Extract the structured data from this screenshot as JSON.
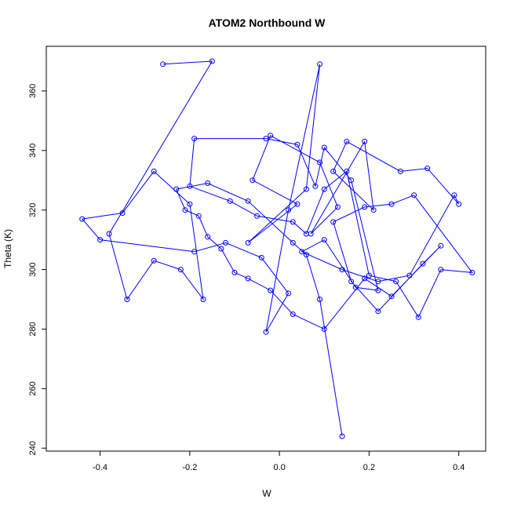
{
  "chart_data": {
    "type": "line",
    "title": "ATOM2 Northbound W",
    "xlabel": "W",
    "ylabel": "Theta (K)",
    "xlim": [
      -0.52,
      0.46
    ],
    "ylim": [
      239.0,
      375.0
    ],
    "xticks": [
      -0.4,
      -0.2,
      0.0,
      0.2,
      0.4
    ],
    "xtick_labels": [
      "-0.4",
      "-0.2",
      "0.0",
      "0.2",
      "0.4"
    ],
    "yticks": [
      240,
      260,
      280,
      300,
      320,
      340,
      360
    ],
    "ytick_labels": [
      "240",
      "260",
      "280",
      "300",
      "320",
      "340",
      "360"
    ],
    "grid": false,
    "legend": "none",
    "series": [
      {
        "color": "#0000ff",
        "marker": "open-circle",
        "x": [
          -0.26,
          -0.15,
          -0.38,
          -0.34,
          -0.28,
          -0.22,
          -0.17,
          -0.2,
          -0.28,
          -0.35,
          -0.44,
          -0.4,
          -0.19,
          -0.12,
          -0.04,
          0.02,
          -0.03,
          0.02,
          0.09,
          0.06,
          -0.07,
          0.04,
          -0.06,
          -0.02,
          0.09,
          0.13,
          0.07,
          0.19,
          0.21,
          0.12,
          0.15,
          0.27,
          0.33,
          0.4,
          0.39,
          0.29,
          0.22,
          0.14,
          0.05,
          0.1,
          0.17,
          0.22,
          0.16,
          0.1,
          0.08,
          0.04,
          -0.03,
          -0.19,
          -0.2,
          -0.11,
          -0.05,
          0.03,
          0.06,
          0.1,
          0.15,
          0.2,
          0.26,
          0.31,
          0.36,
          0.43,
          0.3,
          0.25,
          0.19,
          0.12,
          0.16,
          0.22,
          0.32,
          0.36,
          0.25,
          0.19,
          0.1,
          0.03,
          -0.02,
          -0.07,
          -0.1,
          -0.13,
          -0.16,
          -0.18,
          -0.21,
          -0.23,
          -0.16,
          -0.07,
          0.03,
          0.06,
          0.09,
          0.14
        ],
        "y": [
          369,
          370,
          312,
          290,
          303,
          300,
          290,
          322,
          333,
          319,
          317,
          310,
          306,
          309,
          304,
          292,
          279,
          320,
          369,
          327,
          309,
          322,
          330,
          345,
          336,
          321,
          312,
          343,
          320,
          333,
          343,
          333,
          334,
          322,
          325,
          298,
          296,
          300,
          306,
          310,
          294,
          293,
          330,
          341,
          328,
          342,
          344,
          344,
          328,
          323,
          318,
          316,
          312,
          327,
          333,
          298,
          296,
          284,
          300,
          299,
          325,
          322,
          321,
          316,
          296,
          286,
          302,
          308,
          291,
          297,
          280,
          285,
          293,
          297,
          299,
          307,
          311,
          318,
          320,
          327,
          329,
          323,
          309,
          305,
          290,
          244
        ]
      }
    ]
  }
}
